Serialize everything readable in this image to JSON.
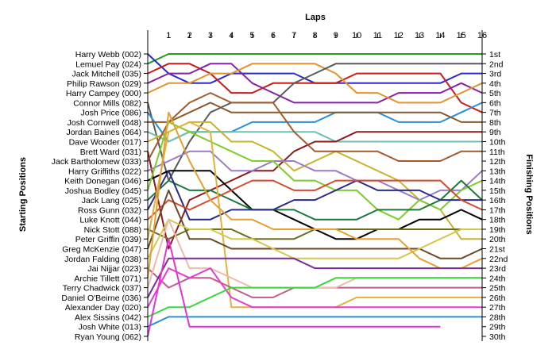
{
  "chart_data": {
    "type": "line",
    "title": "",
    "x_axis_title": "Laps",
    "left_axis_title": "Starting Positions",
    "right_axis_title": "Finishing Positions",
    "laps": [
      "1",
      "2",
      "3",
      "4",
      "5",
      "6",
      "7",
      "8",
      "9",
      "10",
      "11",
      "12",
      "13",
      "14",
      "15",
      "16"
    ],
    "x": [
      0,
      1,
      2,
      3,
      4,
      5,
      6,
      7,
      8,
      9,
      10,
      11,
      12,
      13,
      14,
      15,
      16
    ],
    "ylim": [
      1,
      30
    ],
    "y_inverted": true,
    "grid": false,
    "finishing_positions": [
      "1st",
      "2nd",
      "3rd",
      "4th",
      "5th",
      "6th",
      "7th",
      "8th",
      "9th",
      "10th",
      "11th",
      "12th",
      "13th",
      "14th",
      "15th",
      "16th",
      "17th",
      "18th",
      "19th",
      "20th",
      "21st",
      "22nd",
      "23rd",
      "24th",
      "25th",
      "26th",
      "27th",
      "28th",
      "29th",
      "30th"
    ],
    "drivers": [
      "Harry Webb (002)",
      "Lemuel Pay (024)",
      "Jack Mitchell (035)",
      "Philip Rawson (029)",
      "Harry Campey (000)",
      "Connor Mills (082)",
      "Josh Price (086)",
      "Josh Cornwell (048)",
      "Jordan Baines (064)",
      "Dave Wooder (017)",
      "Brett Ward (031)",
      "Jack Bartholomew (033)",
      "Harry Griffiths (022)",
      "Keith Donegan (046)",
      "Joshua Bodley (045)",
      "Jack Lang (025)",
      "Ross Gunn (032)",
      "Luke Knott (044)",
      "Nick Stott (088)",
      "Peter Griffin (039)",
      "Greg McKenzie (047)",
      "Jordan Falding (038)",
      "Jai Nijjar (023)",
      "Archie Tillett (071)",
      "Terry Chadwick (037)",
      "Daniel O'Beirne (036)",
      "Alexander Day (020)",
      "Alex Sissins (042)",
      "Josh White (013)",
      "Ryan Young (062)"
    ],
    "series": [
      {
        "color": "#1f9e1f",
        "values": [
          2,
          1,
          1,
          1,
          1,
          1,
          1,
          1,
          1,
          1,
          1,
          1,
          1,
          1,
          1,
          1,
          1
        ]
      },
      {
        "color": "#2a2acc",
        "values": [
          1,
          3,
          4,
          4,
          3,
          3,
          3,
          3,
          4,
          4,
          4,
          4,
          4,
          4,
          4,
          3,
          3
        ]
      },
      {
        "color": "#cc1a1a",
        "values": [
          3,
          2,
          2,
          3,
          5,
          5,
          4,
          4,
          4,
          4,
          3,
          3,
          3,
          3,
          3,
          6,
          7
        ]
      },
      {
        "color": "#8a1fa3",
        "values": [
          4,
          3,
          3,
          2,
          2,
          4,
          5,
          6,
          6,
          6,
          6,
          6,
          5,
          5,
          5,
          4,
          5
        ]
      },
      {
        "color": "#e6922b",
        "values": [
          5,
          4,
          4,
          3,
          3,
          2,
          2,
          2,
          2,
          3,
          5,
          5,
          6,
          6,
          6,
          5,
          4
        ]
      },
      {
        "color": "#5a5a5a",
        "values": [
          6,
          14,
          10,
          7,
          6,
          6,
          6,
          4,
          3,
          2,
          2,
          2,
          2,
          2,
          2,
          2,
          2
        ]
      },
      {
        "color": "#2a8fd6",
        "values": [
          7,
          10,
          9,
          9,
          9,
          8,
          8,
          8,
          8,
          7,
          7,
          7,
          8,
          8,
          8,
          7,
          6
        ]
      },
      {
        "color": "#8b5a2b",
        "values": [
          8,
          8,
          7,
          6,
          7,
          7,
          7,
          7,
          7,
          7,
          7,
          7,
          7,
          7,
          7,
          8,
          8
        ]
      },
      {
        "color": "#6fbfb0",
        "values": [
          9,
          10,
          9,
          9,
          9,
          9,
          9,
          9,
          9,
          10,
          10,
          10,
          10,
          10,
          10,
          10,
          10
        ]
      },
      {
        "color": "#c9b32e",
        "values": [
          10,
          9,
          8,
          8,
          10,
          10,
          11,
          13,
          12,
          11,
          12,
          13,
          14,
          16,
          17,
          20,
          20
        ]
      },
      {
        "color": "#8b1a1a",
        "values": [
          11,
          21,
          16,
          15,
          14,
          13,
          13,
          11,
          10,
          10,
          9,
          9,
          9,
          9,
          9,
          9,
          9
        ]
      },
      {
        "color": "#a35a2e",
        "values": [
          12,
          8,
          6,
          5,
          6,
          6,
          6,
          9,
          11,
          11,
          11,
          11,
          12,
          12,
          12,
          11,
          11
        ]
      },
      {
        "color": "#9b7bc9",
        "values": [
          13,
          12,
          11,
          11,
          13,
          13,
          12,
          12,
          13,
          13,
          14,
          14,
          15,
          16,
          15,
          15,
          13
        ]
      },
      {
        "color": "#000000",
        "values": [
          14,
          13,
          13,
          13,
          15,
          17,
          17,
          18,
          19,
          20,
          20,
          19,
          19,
          18,
          18,
          17,
          18
        ]
      },
      {
        "color": "#7ecc2a",
        "values": [
          15,
          8,
          9,
          10,
          11,
          12,
          12,
          14,
          14,
          15,
          15,
          17,
          18,
          16,
          17,
          15,
          14
        ]
      },
      {
        "color": "#1a7a3a",
        "values": [
          16,
          14,
          15,
          15,
          16,
          17,
          17,
          17,
          18,
          18,
          18,
          17,
          17,
          17,
          16,
          14,
          16
        ]
      },
      {
        "color": "#2a2a8a",
        "values": [
          17,
          13,
          18,
          18,
          17,
          17,
          17,
          16,
          16,
          15,
          14,
          15,
          15,
          15,
          16,
          16,
          16
        ]
      },
      {
        "color": "#d64a2e",
        "values": [
          18,
          16,
          17,
          16,
          15,
          14,
          14,
          15,
          15,
          14,
          14,
          14,
          14,
          14,
          14,
          16,
          17
        ]
      },
      {
        "color": "#6e6e1a",
        "values": [
          19,
          20,
          19,
          19,
          19,
          20,
          20,
          20,
          19,
          19,
          19,
          19,
          19,
          19,
          19,
          19,
          19
        ]
      },
      {
        "color": "#e6b03a",
        "values": [
          20,
          9,
          8,
          9,
          27,
          27,
          27,
          27,
          27,
          27,
          26,
          26,
          26,
          26,
          26,
          26,
          26
        ]
      },
      {
        "color": "#6b4a2a",
        "values": [
          21,
          15,
          20,
          20,
          21,
          21,
          21,
          21,
          21,
          21,
          21,
          21,
          21,
          21,
          22,
          22,
          21
        ]
      },
      {
        "color": "#d4c84a",
        "values": [
          22,
          18,
          19,
          19,
          20,
          20,
          21,
          22,
          22,
          22,
          22,
          22,
          22,
          21,
          20,
          19,
          19
        ]
      },
      {
        "color": "#c45a8a",
        "values": [
          23,
          25,
          24,
          24,
          25,
          26,
          26,
          25,
          25,
          25,
          25,
          25,
          25,
          25,
          25,
          25,
          25
        ]
      },
      {
        "color": "#e6a030",
        "values": [
          24,
          7,
          12,
          16,
          18,
          18,
          19,
          19,
          19,
          19,
          20,
          20,
          20,
          22,
          23,
          23,
          22
        ]
      },
      {
        "color": "#f2b8b0",
        "values": [
          25,
          18,
          23,
          23,
          24,
          25,
          25,
          25,
          25,
          25,
          24,
          24,
          24,
          24,
          24,
          24,
          24
        ]
      },
      {
        "color": "#7a2aa0",
        "values": [
          26,
          22,
          22,
          22,
          22,
          22,
          22,
          22,
          23,
          23,
          23,
          23,
          23,
          23,
          23,
          23,
          23
        ]
      },
      {
        "color": "#e63ad6",
        "values": [
          27,
          23,
          24,
          23,
          26,
          27,
          27,
          27,
          27,
          27,
          27,
          27,
          27,
          27,
          27,
          27,
          27
        ]
      },
      {
        "color": "#3ad63a",
        "values": [
          28,
          27,
          27,
          26,
          25,
          25,
          25,
          25,
          25,
          24,
          24,
          24,
          24,
          24,
          24,
          24,
          24
        ]
      },
      {
        "color": "#2a8fd6",
        "values": [
          29,
          28,
          28,
          28,
          28,
          28,
          28,
          28,
          28,
          28,
          28,
          28,
          28,
          28,
          28,
          28,
          28
        ]
      },
      {
        "color": "#e632d6",
        "values": [
          30,
          20,
          29,
          29,
          29,
          29,
          29,
          29,
          29,
          29,
          29,
          29,
          29,
          29,
          29,
          null,
          null
        ]
      }
    ]
  }
}
